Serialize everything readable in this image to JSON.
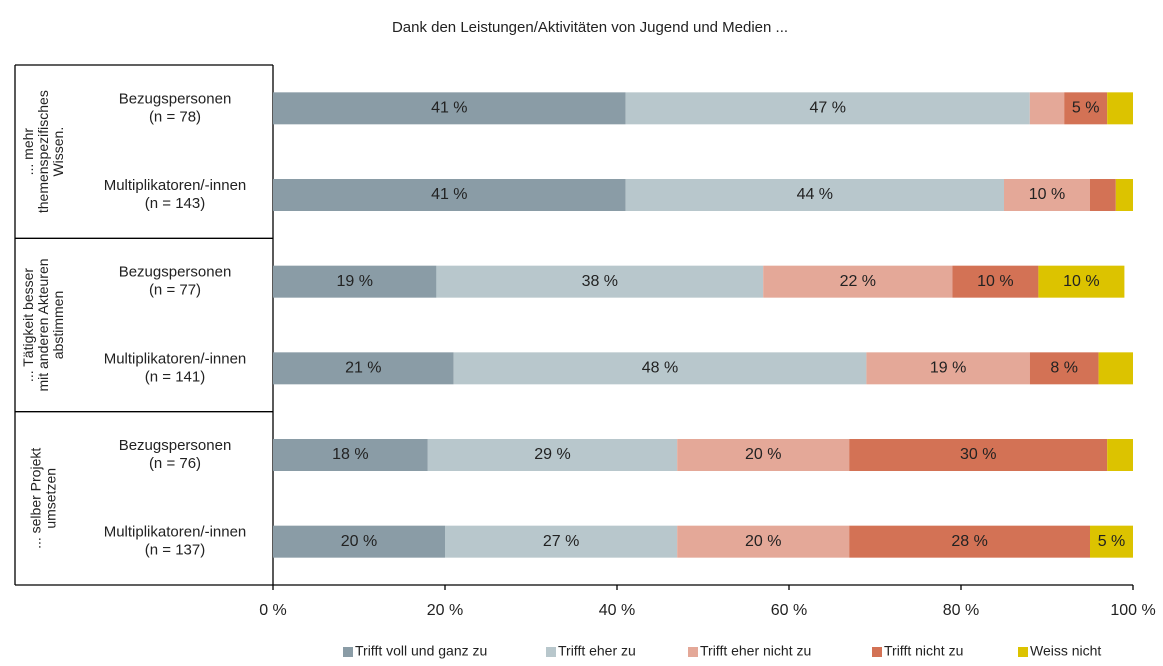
{
  "chart_data": {
    "type": "stacked-barh",
    "title": "Dank den Leistungen/Aktivitäten von Jugend und Medien ...",
    "groups": [
      {
        "label": [
          "... mehr",
          "themenspezifisches",
          "Wissen."
        ]
      },
      {
        "label": [
          "... Tätigkeit besser",
          "mit anderen Akteuren",
          "abstimmen"
        ]
      },
      {
        "label": [
          "... selber Projekt",
          "umsetzen"
        ]
      }
    ],
    "categories": [
      [
        "Bezugspersonen",
        "(n = 78)"
      ],
      [
        "Multiplikatoren/-innen",
        "(n = 143)"
      ],
      [
        "Bezugspersonen",
        "(n = 77)"
      ],
      [
        "Multiplikatoren/-innen",
        "(n = 141)"
      ],
      [
        "Bezugspersonen",
        "(n = 76)"
      ],
      [
        "Multiplikatoren/-innen",
        "(n = 137)"
      ]
    ],
    "series": [
      {
        "name": "Trifft voll und ganz zu",
        "color": "#8a9ca6",
        "values": [
          41,
          41,
          19,
          21,
          18,
          20
        ],
        "value_labels": [
          "41 %",
          "41 %",
          "19 %",
          "21 %",
          "18 %",
          "20 %"
        ]
      },
      {
        "name": "Trifft eher zu",
        "color": "#b8c7cc",
        "values": [
          47,
          44,
          38,
          48,
          29,
          27
        ],
        "value_labels": [
          "47 %",
          "44 %",
          "38 %",
          "48 %",
          "29 %",
          "27 %"
        ]
      },
      {
        "name": "Trifft eher nicht zu",
        "color": "#e4a898",
        "values": [
          4,
          10,
          22,
          19,
          20,
          20
        ],
        "value_labels": [
          null,
          "10 %",
          "22 %",
          "19 %",
          "20 %",
          "20 %"
        ]
      },
      {
        "name": "Trifft nicht zu",
        "color": "#d37255",
        "values": [
          5,
          3,
          10,
          8,
          30,
          28
        ],
        "value_labels": [
          "5 %",
          null,
          "10 %",
          "8 %",
          "30 %",
          "28 %"
        ]
      },
      {
        "name": "Weiss nicht",
        "color": "#dcc300",
        "values": [
          3,
          2,
          10,
          4,
          3,
          5
        ],
        "value_labels": [
          null,
          null,
          "10 %",
          null,
          null,
          "5 %"
        ]
      }
    ],
    "xlim": [
      0,
      100
    ],
    "xticks": [
      {
        "value": 0,
        "label": "0 %"
      },
      {
        "value": 20,
        "label": "20 %"
      },
      {
        "value": 40,
        "label": "40 %"
      },
      {
        "value": 60,
        "label": "60 %"
      },
      {
        "value": 80,
        "label": "80 %"
      },
      {
        "value": 100,
        "label": "100 %"
      }
    ],
    "legend": "bottom"
  }
}
